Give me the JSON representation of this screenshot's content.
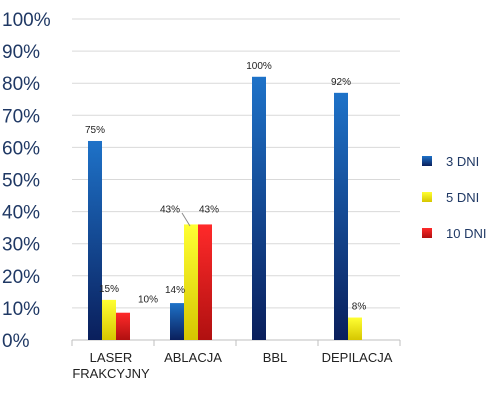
{
  "chart_data": {
    "type": "bar",
    "title": "",
    "xlabel": "",
    "ylabel": "",
    "ylim": [
      0,
      100
    ],
    "yticks": [
      "0%",
      "10%",
      "20%",
      "30%",
      "40%",
      "50%",
      "60%",
      "70%",
      "80%",
      "90%",
      "100%"
    ],
    "categories": [
      [
        "LASER",
        "FRAKCYJNY"
      ],
      [
        "ABLACJA"
      ],
      [
        "BBL"
      ],
      [
        "DEPILACJA"
      ]
    ],
    "series": [
      {
        "name": "3 DNI",
        "color_top": "#1e72c8",
        "color_bottom": "#0a1f5c",
        "values": [
          62,
          11.5,
          82,
          77
        ],
        "labels": [
          "75%",
          "14%",
          "100%",
          "92%"
        ]
      },
      {
        "name": "5 DNI",
        "color_top": "#ffff33",
        "color_bottom": "#d6c600",
        "values": [
          12.5,
          36,
          null,
          7
        ],
        "labels": [
          "15%",
          "43%",
          "",
          "8%"
        ]
      },
      {
        "name": "10 DNI",
        "color_top": "#ff2a2a",
        "color_bottom": "#b01010",
        "values": [
          8.5,
          36,
          null,
          null
        ],
        "labels": [
          "10%",
          "43%",
          "",
          ""
        ]
      }
    ],
    "legend_position": "right",
    "grid": "horizontal"
  }
}
